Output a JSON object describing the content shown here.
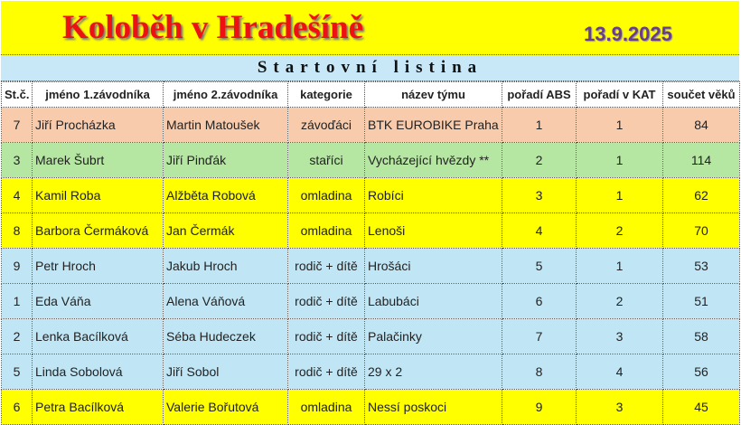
{
  "title": "Koloběh v Hradešíně",
  "date": "13.9.2025",
  "subtitle": "Startovní listina",
  "columns": [
    "St.č.",
    "jméno 1.závodníka",
    "jméno 2.závodníka",
    "kategorie",
    "název týmu",
    "pořadí ABS",
    "pořadí v KAT",
    "součet věků"
  ],
  "category_colors": {
    "závoďáci": "#f8cbad",
    "staříci": "#b5e6a2",
    "omladina": "#ffff00",
    "rodič + dítě": "#c0e6f5"
  },
  "rows": [
    [
      "7",
      "Jiří Procházka",
      "Martin Matoušek",
      "závoďáci",
      "BTK EUROBIKE Praha",
      "1",
      "1",
      "84"
    ],
    [
      "3",
      "Marek Šubrt",
      "Jiří Pinďák",
      "staříci",
      "Vycházející hvězdy **",
      "2",
      "1",
      "114"
    ],
    [
      "4",
      "Kamil Roba",
      "Alžběta Robová",
      "omladina",
      "Robíci",
      "3",
      "1",
      "62"
    ],
    [
      "8",
      "Barbora Čermáková",
      "Jan Čermák",
      "omladina",
      "Lenoši",
      "4",
      "2",
      "70"
    ],
    [
      "9",
      "Petr Hroch",
      "Jakub Hroch",
      "rodič + dítě",
      "Hrošáci",
      "5",
      "1",
      "53"
    ],
    [
      "1",
      "Eda Váňa",
      "Alena Váňová",
      "rodič + dítě",
      "Labubáci",
      "6",
      "2",
      "51"
    ],
    [
      "2",
      "Lenka Bacílková",
      "Séba Hudeczek",
      "rodič + dítě",
      "Palačinky",
      "7",
      "3",
      "58"
    ],
    [
      "5",
      "Linda Sobolová",
      "Jiří Sobol",
      "rodič + dítě",
      "29 x 2",
      "8",
      "4",
      "56"
    ],
    [
      "6",
      "Petra Bacílková",
      "Valerie Bořutová",
      "omladina",
      "Nessí poskoci",
      "9",
      "3",
      "45"
    ]
  ]
}
